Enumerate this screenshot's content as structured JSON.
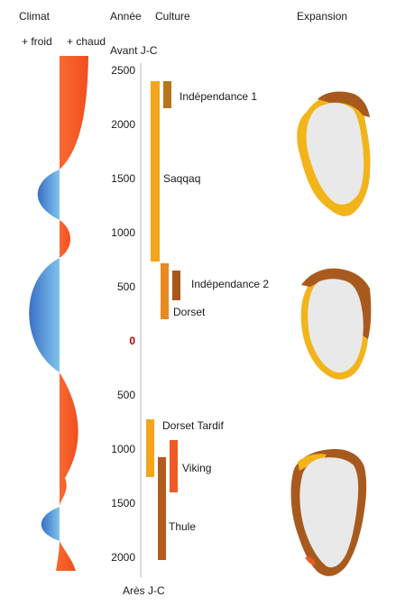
{
  "headers": {
    "climat": "Climat",
    "annee": "Année",
    "culture": "Culture",
    "expansion": "Expansion"
  },
  "climate_legend": {
    "cold": "+ froid",
    "warm": "+ chaud"
  },
  "axis": {
    "top_label": "Avant J-C",
    "bottom_label": "Arès J-C",
    "ticks": [
      "2500",
      "2000",
      "1500",
      "1000",
      "500",
      "0",
      "500",
      "1000",
      "1500",
      "2000"
    ]
  },
  "cultures": [
    {
      "name": "Indépendance 1",
      "from": -2400,
      "to": -2150,
      "color": "#b8761a"
    },
    {
      "name": "Saqqaq",
      "from": -2400,
      "to": -750,
      "color": "#f4a51c"
    },
    {
      "name": "Indépendance 2",
      "from": -700,
      "to": -200,
      "color": "#e88a1f"
    },
    {
      "name": "Dorset",
      "from": -700,
      "to": -200,
      "color": "#e88a1f"
    },
    {
      "name": "Dorset Tardif",
      "from": 750,
      "to": 1250,
      "color": "#f4a51c"
    },
    {
      "name": "Viking",
      "from": 900,
      "to": 1400,
      "color": "#f05a28"
    },
    {
      "name": "Thule",
      "from": 1050,
      "to": 2000,
      "color": "#b45a1e"
    }
  ],
  "colors": {
    "warm": "#f4572a",
    "cold": "#3f8fd8",
    "saqqaq": "#f4a51c",
    "ind1": "#b8761a",
    "ind2": "#a9561c",
    "dorset": "#e88a1f",
    "tardif": "#f4a51c",
    "viking": "#f05a28",
    "thule": "#b45a1e",
    "ice": "#e9e9e9",
    "coast_brown": "#a85a1e",
    "coast_yellow": "#f2b41b"
  }
}
